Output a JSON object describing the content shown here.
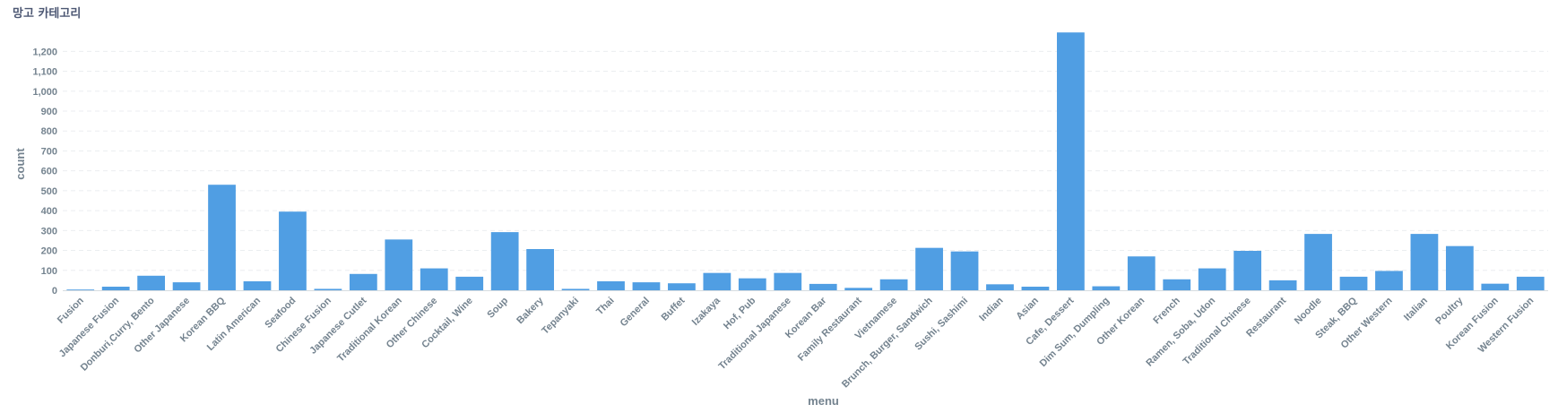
{
  "title": "망고 카테고리",
  "chart_data": {
    "type": "bar",
    "title": "망고 카테고리",
    "xlabel": "menu",
    "ylabel": "count",
    "ylim": [
      0,
      1350
    ],
    "yticks": [
      0,
      100,
      200,
      300,
      400,
      500,
      600,
      700,
      800,
      900,
      1000,
      1100,
      1200
    ],
    "grid": true,
    "bar_color": "#509ee3",
    "categories": [
      "Fusion",
      "Japanese Fusion",
      "Donburi,Curry, Bento",
      "Other Japanese",
      "Korean BBQ",
      "Latin American",
      "Seafood",
      "Chinese Fusion",
      "Japanese Cutlet",
      "Traditional Korean",
      "Other Chinese",
      "Cocktail, Wine",
      "Soup",
      "Bakery",
      "Tepanyaki",
      "Thai",
      "General",
      "Buffet",
      "Izakaya",
      "Hof, Pub",
      "Traditional Japanese",
      "Korean Bar",
      "Family Restaurant",
      "Vietnamese",
      "Brunch, Burger, Sandwich",
      "Sushi, Sashimi",
      "Indian",
      "Asian",
      "Cafe, Dessert",
      "Dim Sum, Dumpling",
      "Other Korean",
      "French",
      "Ramen, Soba, Udon",
      "Traditional Chinese",
      "Restaurant",
      "Noodle",
      "Steak, BBQ",
      "Other Western",
      "Italian",
      "Poultry",
      "Korean Fusion",
      "Western Fusion"
    ],
    "values": [
      3,
      18,
      73,
      40,
      530,
      45,
      395,
      7,
      82,
      255,
      110,
      68,
      292,
      207,
      7,
      45,
      40,
      35,
      87,
      60,
      87,
      32,
      12,
      55,
      213,
      195,
      30,
      18,
      1295,
      20,
      170,
      55,
      110,
      198,
      50,
      283,
      68,
      97,
      283,
      222,
      33,
      68
    ]
  }
}
